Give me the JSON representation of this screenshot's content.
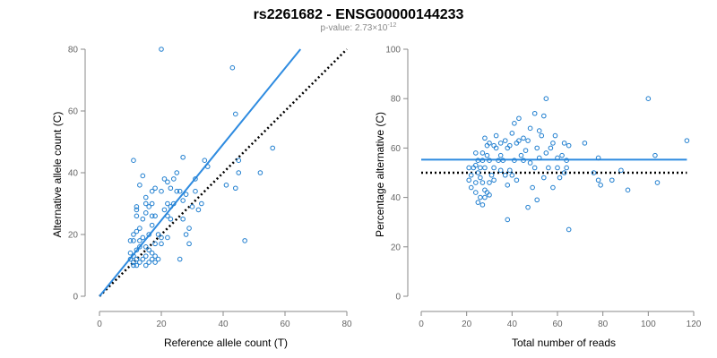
{
  "title": "rs2261682 - ENSG00000144233",
  "subtitle": {
    "prefix": "p-value: 2.73×10",
    "exponent": "-12"
  },
  "colors": {
    "points": "#1f7ecf",
    "fit_line": "#2e8be0",
    "reference_line": "#000000"
  },
  "chart_data": [
    {
      "type": "scatter",
      "xlabel": "Reference allele count (T)",
      "ylabel": "Alternative allele count (C)",
      "xlim": [
        0,
        80
      ],
      "ylim": [
        0,
        80
      ],
      "xticks": [
        0,
        20,
        40,
        60,
        80
      ],
      "yticks": [
        0,
        20,
        40,
        60,
        80
      ],
      "grid": false,
      "fit_line": {
        "x": [
          0,
          65
        ],
        "y": [
          0,
          80
        ]
      },
      "reference_line": {
        "x": [
          0,
          80
        ],
        "y": [
          0,
          80
        ],
        "style": "dotted"
      },
      "points": [
        [
          10,
          12
        ],
        [
          10,
          14
        ],
        [
          10,
          18
        ],
        [
          11,
          10
        ],
        [
          11,
          11
        ],
        [
          11,
          13
        ],
        [
          11,
          18
        ],
        [
          11,
          20
        ],
        [
          11,
          44
        ],
        [
          12,
          10
        ],
        [
          12,
          12
        ],
        [
          12,
          15
        ],
        [
          12,
          21
        ],
        [
          12,
          26
        ],
        [
          12,
          28
        ],
        [
          12,
          29
        ],
        [
          13,
          11
        ],
        [
          13,
          16
        ],
        [
          13,
          18
        ],
        [
          13,
          22
        ],
        [
          13,
          36
        ],
        [
          14,
          12
        ],
        [
          14,
          19
        ],
        [
          14,
          25
        ],
        [
          14,
          39
        ],
        [
          15,
          10
        ],
        [
          15,
          13
        ],
        [
          15,
          16
        ],
        [
          15,
          27
        ],
        [
          15,
          30
        ],
        [
          15,
          32
        ],
        [
          16,
          11
        ],
        [
          16,
          15
        ],
        [
          16,
          20
        ],
        [
          16,
          29
        ],
        [
          17,
          12
        ],
        [
          17,
          14
        ],
        [
          17,
          23
        ],
        [
          17,
          26
        ],
        [
          17,
          30
        ],
        [
          17,
          34
        ],
        [
          18,
          11
        ],
        [
          18,
          13
        ],
        [
          18,
          17
        ],
        [
          18,
          26
        ],
        [
          18,
          35
        ],
        [
          19,
          12
        ],
        [
          19,
          20
        ],
        [
          20,
          17
        ],
        [
          20,
          19
        ],
        [
          20,
          34
        ],
        [
          20,
          80
        ],
        [
          21,
          28
        ],
        [
          21,
          38
        ],
        [
          22,
          19
        ],
        [
          22,
          26
        ],
        [
          22,
          30
        ],
        [
          22,
          37
        ],
        [
          23,
          25
        ],
        [
          23,
          29
        ],
        [
          23,
          35
        ],
        [
          24,
          30
        ],
        [
          24,
          38
        ],
        [
          25,
          34
        ],
        [
          25,
          40
        ],
        [
          26,
          12
        ],
        [
          26,
          34
        ],
        [
          27,
          25
        ],
        [
          27,
          31
        ],
        [
          27,
          45
        ],
        [
          28,
          20
        ],
        [
          28,
          33
        ],
        [
          29,
          17
        ],
        [
          29,
          22
        ],
        [
          30,
          29
        ],
        [
          31,
          34
        ],
        [
          31,
          38
        ],
        [
          32,
          28
        ],
        [
          33,
          30
        ],
        [
          34,
          44
        ],
        [
          35,
          42
        ],
        [
          41,
          36
        ],
        [
          43,
          74
        ],
        [
          44,
          35
        ],
        [
          44,
          59
        ],
        [
          45,
          40
        ],
        [
          45,
          44
        ],
        [
          47,
          18
        ],
        [
          52,
          40
        ],
        [
          56,
          48
        ]
      ]
    },
    {
      "type": "scatter",
      "xlabel": "Total number of reads",
      "ylabel": "Percentage alternative (C)",
      "xlim": [
        0,
        120
      ],
      "ylim": [
        0,
        100
      ],
      "xticks": [
        0,
        20,
        40,
        60,
        80,
        100,
        120
      ],
      "yticks": [
        0,
        20,
        40,
        60,
        80,
        100
      ],
      "grid": false,
      "fit_line": {
        "x": [
          0,
          117
        ],
        "y": [
          55.3,
          55.3
        ]
      },
      "reference_line": {
        "x": [
          0,
          117
        ],
        "y": [
          50,
          50
        ],
        "style": "dotted"
      },
      "points": [
        [
          21,
          47
        ],
        [
          21,
          52
        ],
        [
          22,
          44
        ],
        [
          22,
          49
        ],
        [
          23,
          52
        ],
        [
          24,
          42
        ],
        [
          24,
          46
        ],
        [
          24,
          53
        ],
        [
          24,
          58
        ],
        [
          25,
          38
        ],
        [
          25,
          50
        ],
        [
          25,
          55
        ],
        [
          26,
          40
        ],
        [
          26,
          48
        ],
        [
          26,
          52
        ],
        [
          27,
          37
        ],
        [
          27,
          46
        ],
        [
          27,
          55
        ],
        [
          27,
          58
        ],
        [
          28,
          40
        ],
        [
          28,
          43
        ],
        [
          28,
          52
        ],
        [
          28,
          64
        ],
        [
          29,
          42
        ],
        [
          29,
          57
        ],
        [
          29,
          61
        ],
        [
          30,
          41
        ],
        [
          30,
          46
        ],
        [
          30,
          55
        ],
        [
          30,
          62
        ],
        [
          31,
          49
        ],
        [
          32,
          47
        ],
        [
          32,
          52
        ],
        [
          32,
          61
        ],
        [
          33,
          60
        ],
        [
          33,
          65
        ],
        [
          34,
          55
        ],
        [
          35,
          51
        ],
        [
          35,
          57
        ],
        [
          35,
          62
        ],
        [
          36,
          55
        ],
        [
          37,
          49
        ],
        [
          37,
          63
        ],
        [
          38,
          31
        ],
        [
          38,
          45
        ],
        [
          38,
          60
        ],
        [
          39,
          51
        ],
        [
          39,
          61
        ],
        [
          40,
          49
        ],
        [
          40,
          66
        ],
        [
          41,
          55
        ],
        [
          41,
          70
        ],
        [
          42,
          47
        ],
        [
          42,
          62
        ],
        [
          43,
          72
        ],
        [
          43,
          63
        ],
        [
          44,
          57
        ],
        [
          45,
          55
        ],
        [
          45,
          64
        ],
        [
          46,
          59
        ],
        [
          47,
          36
        ],
        [
          47,
          63
        ],
        [
          48,
          54
        ],
        [
          48,
          68
        ],
        [
          49,
          44
        ],
        [
          50,
          74
        ],
        [
          50,
          52
        ],
        [
          51,
          39
        ],
        [
          51,
          60
        ],
        [
          52,
          67
        ],
        [
          52,
          56
        ],
        [
          53,
          65
        ],
        [
          54,
          48
        ],
        [
          54,
          73
        ],
        [
          55,
          58
        ],
        [
          55,
          80
        ],
        [
          56,
          52
        ],
        [
          57,
          60
        ],
        [
          58,
          44
        ],
        [
          58,
          62
        ],
        [
          59,
          65
        ],
        [
          60,
          56
        ],
        [
          60,
          52
        ],
        [
          61,
          48
        ],
        [
          62,
          57
        ],
        [
          63,
          62
        ],
        [
          63,
          50
        ],
        [
          64,
          55
        ],
        [
          64,
          52
        ],
        [
          65,
          27
        ],
        [
          65,
          61
        ],
        [
          72,
          62
        ],
        [
          76,
          50
        ],
        [
          78,
          56
        ],
        [
          78,
          47
        ],
        [
          79,
          45
        ],
        [
          84,
          47
        ],
        [
          88,
          51
        ],
        [
          91,
          43
        ],
        [
          100,
          80
        ],
        [
          103,
          57
        ],
        [
          104,
          46
        ],
        [
          117,
          63
        ]
      ]
    }
  ]
}
